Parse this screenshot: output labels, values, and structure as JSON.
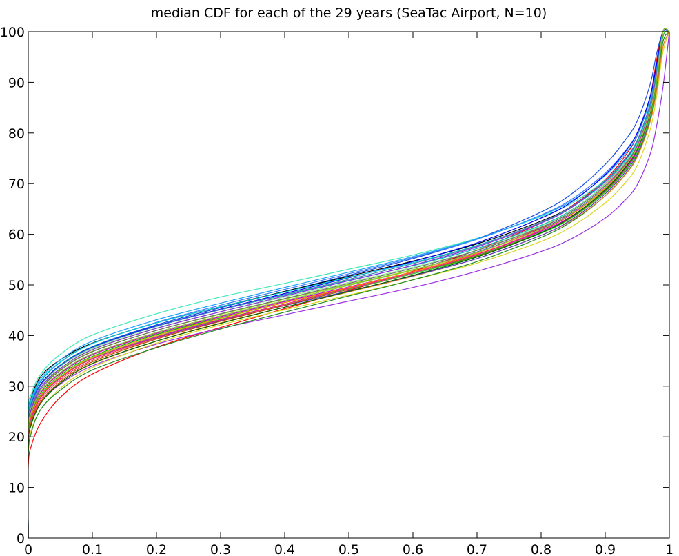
{
  "chart_data": {
    "type": "line",
    "title": "median CDF for each of the 29 years (SeaTac Airport, N=10)",
    "xlabel": "",
    "ylabel": "",
    "xlim": [
      0,
      1
    ],
    "ylim": [
      0,
      100
    ],
    "xticks": [
      "0",
      "0.1",
      "0.2",
      "0.3",
      "0.4",
      "0.5",
      "0.6",
      "0.7",
      "0.8",
      "0.9",
      "1"
    ],
    "yticks": [
      "0",
      "10",
      "20",
      "30",
      "40",
      "50",
      "60",
      "70",
      "80",
      "90",
      "100"
    ],
    "grid": false,
    "legend": "none",
    "x": [
      0,
      0.005,
      0.02,
      0.05,
      0.1,
      0.2,
      0.3,
      0.4,
      0.5,
      0.6,
      0.7,
      0.8,
      0.85,
      0.9,
      0.93,
      0.95,
      0.97,
      0.98,
      0.99
    ],
    "series": [
      {
        "color": "#ff0000",
        "values": [
          14,
          18.3,
          22.9,
          27.8,
          32.4,
          37.7,
          41.6,
          45.3,
          48.9,
          52.7,
          56.9,
          62.2,
          65.8,
          70.8,
          75.3,
          79.5,
          87.2,
          94.4,
          100
        ]
      },
      {
        "color": "#9a30e0",
        "values": [
          20,
          22.9,
          26.8,
          30.4,
          34,
          38.3,
          41.4,
          44.1,
          46.8,
          49.5,
          52.7,
          56.6,
          59.3,
          63.2,
          66.6,
          69.8,
          75.8,
          81.3,
          89
        ]
      },
      {
        "color": "#40e8b8",
        "values": [
          24,
          28.5,
          32.5,
          36.3,
          40.1,
          44.3,
          47.6,
          50.3,
          53.1,
          55.9,
          59.2,
          63.5,
          66.3,
          70.7,
          74.3,
          77.8,
          84.4,
          90.3,
          100
        ]
      },
      {
        "color": "#1a4fe0",
        "values": [
          22,
          26.1,
          30.2,
          33.9,
          37.8,
          42.1,
          45.5,
          48.7,
          51.9,
          55.2,
          59.1,
          64.4,
          68.2,
          73.8,
          78.4,
          82.4,
          89.6,
          95.6,
          100
        ]
      },
      {
        "color": "#d8d820",
        "values": [
          17,
          21.4,
          25.5,
          29.6,
          33.7,
          38.5,
          42.1,
          45.1,
          48,
          51,
          54.3,
          58.6,
          61.7,
          66.2,
          70,
          73.6,
          80.6,
          87.1,
          96
        ]
      },
      {
        "color": "#228b22",
        "values": [
          16,
          20.9,
          25.5,
          29.2,
          33.2,
          37.6,
          41.3,
          44.6,
          47.8,
          51,
          54.6,
          59.4,
          62.7,
          67.6,
          71.7,
          75.5,
          82.6,
          89,
          98
        ]
      },
      {
        "color": "#000000",
        "values": [
          23,
          27.8,
          32,
          35.2,
          38.5,
          42.5,
          45.7,
          48.7,
          51.7,
          54.7,
          58.1,
          62.6,
          65.7,
          70.5,
          74.6,
          78.4,
          85.7,
          92.2,
          100
        ]
      },
      {
        "color": "#e07a10",
        "values": [
          18,
          22.6,
          26.8,
          30.6,
          34.4,
          38.9,
          42.5,
          45.6,
          48.6,
          51.7,
          55.2,
          59.8,
          62.9,
          67.6,
          71.6,
          75.3,
          82.2,
          88.3,
          97
        ]
      },
      {
        "color": "#2020c0",
        "values": [
          21,
          25.1,
          29,
          32.7,
          36.4,
          40.6,
          43.9,
          46.9,
          49.9,
          53,
          56.5,
          61.1,
          64.4,
          69.3,
          73.4,
          77.2,
          84.4,
          90.8,
          100
        ]
      },
      {
        "color": "#00c000",
        "values": [
          20,
          24.4,
          28.4,
          32.2,
          35.9,
          40.2,
          43.5,
          46.5,
          49.4,
          52.4,
          55.8,
          60.4,
          63.6,
          68.6,
          72.8,
          76.7,
          84.1,
          90.7,
          100
        ]
      },
      {
        "color": "#ff3a3a",
        "values": [
          19,
          23.3,
          27.4,
          31.3,
          35.1,
          39.5,
          43,
          46.2,
          49.4,
          52.6,
          56.3,
          61.3,
          64.8,
          70,
          74.3,
          78.2,
          85.4,
          91.6,
          100
        ]
      },
      {
        "color": "#00b8b8",
        "values": [
          22,
          26.5,
          30.5,
          34.2,
          37.8,
          41.9,
          45.1,
          48,
          50.9,
          53.8,
          57.2,
          61.8,
          65,
          69.9,
          74,
          77.8,
          84.9,
          91.2,
          100
        ]
      },
      {
        "color": "#7fd400",
        "values": [
          21,
          25.5,
          29.7,
          33.3,
          36.9,
          41,
          44.2,
          47.2,
          50.1,
          53,
          56.4,
          61,
          64.2,
          69.2,
          73.4,
          77.3,
          84.5,
          90.9,
          100
        ]
      },
      {
        "color": "#5b3cc4",
        "values": [
          19.5,
          24,
          28.1,
          31.8,
          35.4,
          39.6,
          42.9,
          45.9,
          48.8,
          51.8,
          55.2,
          59.8,
          63.1,
          68,
          72.1,
          75.9,
          83.1,
          89.6,
          99
        ]
      },
      {
        "color": "#3a78ff",
        "values": [
          22.5,
          26.9,
          31,
          34.7,
          38.4,
          42.6,
          46,
          49.1,
          52.2,
          55.4,
          59,
          63.8,
          67.1,
          72.1,
          76.3,
          80.1,
          87.2,
          93.3,
          100
        ]
      },
      {
        "color": "#b84a00",
        "values": [
          18.5,
          22.9,
          27,
          30.9,
          34.8,
          39.3,
          42.8,
          46,
          49.1,
          52.2,
          55.7,
          60.3,
          63.5,
          68.4,
          72.5,
          76.3,
          83.4,
          89.8,
          99
        ]
      },
      {
        "color": "#1aa0ff",
        "values": [
          23.5,
          27.6,
          31.6,
          35.2,
          38.9,
          43.1,
          46.4,
          49.5,
          52.5,
          55.6,
          59.1,
          63.7,
          66.8,
          71.6,
          75.7,
          79.5,
          86.6,
          92.8,
          100
        ]
      },
      {
        "color": "#90ee90",
        "values": [
          21.5,
          26.1,
          30.3,
          33.9,
          37.4,
          41.5,
          44.7,
          47.6,
          50.5,
          53.5,
          56.9,
          61.6,
          64.9,
          69.9,
          74.1,
          78,
          85.3,
          91.7,
          100
        ]
      },
      {
        "color": "#c000c0",
        "values": [
          20.5,
          24.8,
          28.8,
          32.5,
          36.2,
          40.4,
          43.7,
          46.7,
          49.6,
          52.6,
          56,
          60.6,
          63.8,
          68.7,
          72.8,
          76.6,
          83.8,
          90.2,
          100
        ]
      },
      {
        "color": "#0000ff",
        "values": [
          22,
          26.4,
          30.5,
          34.1,
          37.7,
          41.9,
          45.2,
          48.3,
          51.4,
          54.6,
          58.3,
          63.2,
          66.6,
          71.8,
          76.1,
          80,
          87.2,
          93.5,
          100
        ]
      },
      {
        "color": "#32cd32",
        "values": [
          19,
          23.6,
          27.9,
          31.7,
          35.5,
          39.8,
          43.2,
          46.2,
          49.2,
          52.2,
          55.6,
          60.2,
          63.4,
          68.3,
          72.4,
          76.2,
          83.3,
          89.7,
          99
        ]
      },
      {
        "color": "#707070",
        "values": [
          21,
          25.3,
          29.4,
          33.1,
          36.8,
          41,
          44.3,
          47.3,
          50.3,
          53.3,
          56.8,
          61.4,
          64.7,
          69.6,
          73.7,
          77.5,
          84.7,
          91,
          100
        ]
      },
      {
        "color": "#ff8c00",
        "values": [
          20,
          24.2,
          28.2,
          31.9,
          35.7,
          40,
          43.4,
          46.5,
          49.5,
          52.6,
          56.1,
          60.8,
          64.1,
          69,
          73.1,
          76.9,
          84,
          90.4,
          100
        ]
      },
      {
        "color": "#00ced1",
        "values": [
          23,
          27.2,
          31.2,
          34.8,
          38.4,
          42.5,
          45.7,
          48.6,
          51.5,
          54.4,
          57.8,
          62.3,
          65.5,
          70.3,
          74.4,
          78.2,
          85.4,
          91.8,
          100
        ]
      },
      {
        "color": "#006400",
        "values": [
          18,
          22.5,
          26.7,
          30.6,
          34.5,
          38.9,
          42.4,
          45.6,
          48.7,
          51.9,
          55.5,
          60.3,
          63.7,
          68.8,
          73,
          76.9,
          84.1,
          90.5,
          100
        ]
      },
      {
        "color": "#8a2be2",
        "values": [
          21,
          25.6,
          29.8,
          33.5,
          37.2,
          41.4,
          44.7,
          47.8,
          50.8,
          53.9,
          57.5,
          62.2,
          65.5,
          70.5,
          74.7,
          78.5,
          85.7,
          92,
          100
        ]
      },
      {
        "color": "#ff1493",
        "values": [
          19.5,
          23.8,
          27.8,
          31.6,
          35.4,
          39.7,
          43.1,
          46.2,
          49.3,
          52.4,
          56,
          60.8,
          64.2,
          69.3,
          73.5,
          77.3,
          84.5,
          90.9,
          100
        ]
      },
      {
        "color": "#4682b4",
        "values": [
          22,
          26.3,
          30.3,
          34,
          37.6,
          41.8,
          45.1,
          48.1,
          51.1,
          54.2,
          57.7,
          62.4,
          65.7,
          70.6,
          74.8,
          78.6,
          85.8,
          92.1,
          100
        ]
      },
      {
        "color": "#9acd32",
        "values": [
          20.5,
          24.9,
          29,
          32.7,
          36.4,
          40.6,
          43.9,
          46.9,
          49.9,
          52.9,
          56.4,
          61,
          64.3,
          69.2,
          73.3,
          77.1,
          84.3,
          90.7,
          100
        ]
      }
    ]
  }
}
